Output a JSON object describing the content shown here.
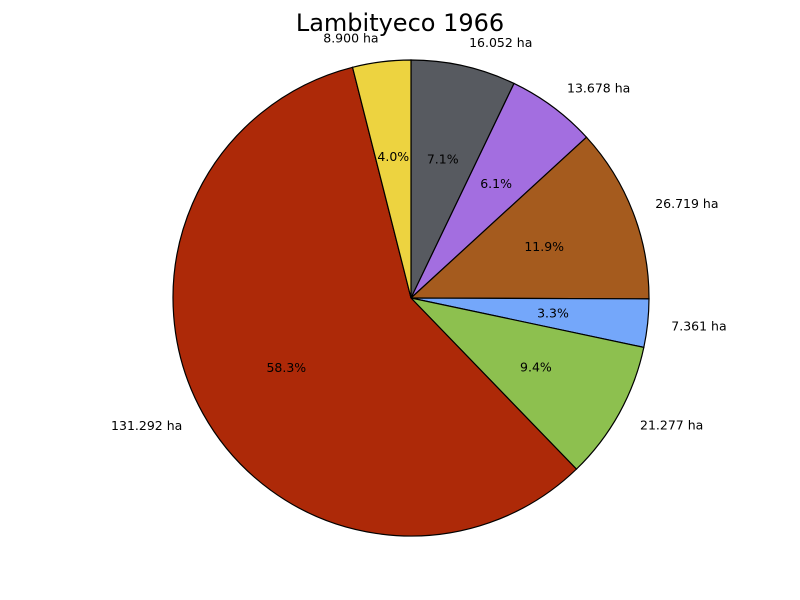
{
  "chart_data": {
    "type": "pie",
    "title": "Lambityeco 1966",
    "unit": "ha",
    "start_angle_deg": 90,
    "direction": "clockwise",
    "slices": [
      {
        "value": 16.052,
        "label": "16.052 ha",
        "percent_label": "7.1%",
        "color": "#575a60"
      },
      {
        "value": 13.678,
        "label": "13.678 ha",
        "percent_label": "6.1%",
        "color": "#a36ee0"
      },
      {
        "value": 26.719,
        "label": "26.719 ha",
        "percent_label": "11.9%",
        "color": "#a55b1e"
      },
      {
        "value": 7.361,
        "label": "7.361 ha",
        "percent_label": "3.3%",
        "color": "#74a7fa"
      },
      {
        "value": 21.277,
        "label": "21.277 ha",
        "percent_label": "9.4%",
        "color": "#8dc04f"
      },
      {
        "value": 131.292,
        "label": "131.292 ha",
        "percent_label": "58.3%",
        "color": "#ad2908"
      },
      {
        "value": 8.9,
        "label": "8.900 ha",
        "percent_label": "4.0%",
        "color": "#edd340"
      }
    ]
  }
}
